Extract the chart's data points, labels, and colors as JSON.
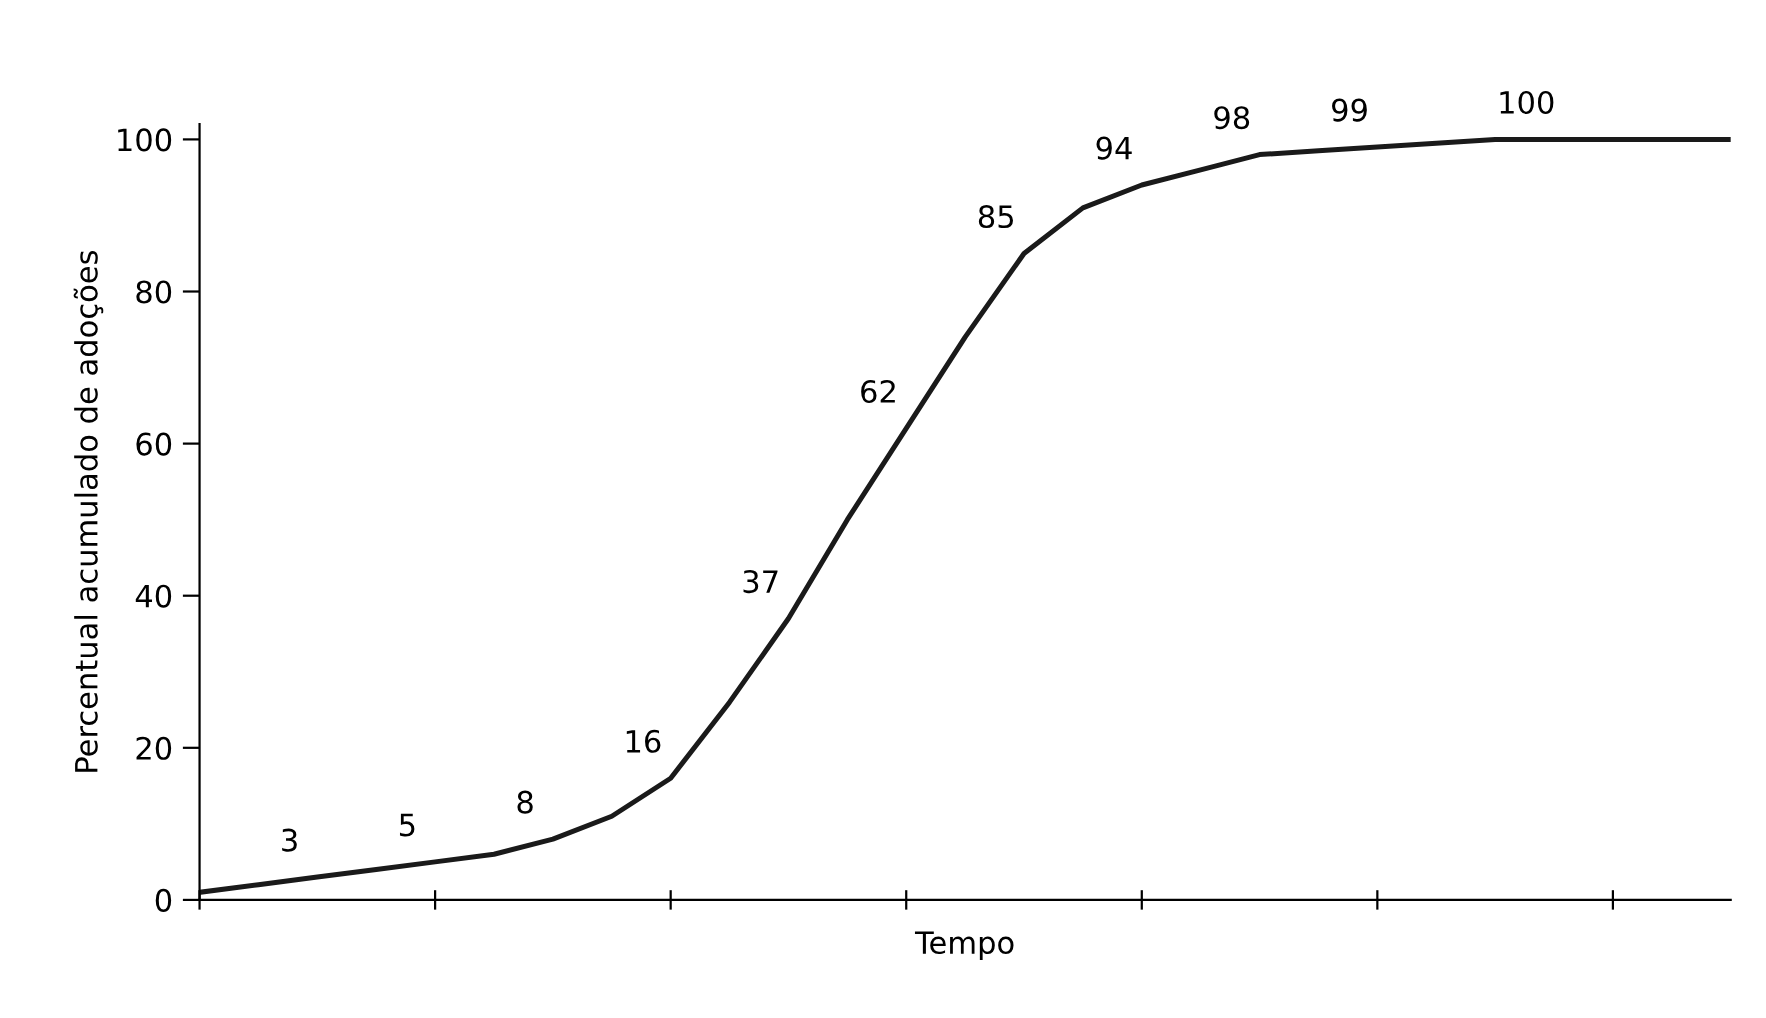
{
  "chart_data": {
    "type": "line",
    "xlabel": "Tempo",
    "ylabel": "Percentual acumulado de adoções",
    "categories": [
      null,
      null,
      null,
      null,
      null,
      null,
      null,
      null,
      null,
      null,
      null,
      null,
      null,
      null,
      null,
      null,
      null,
      null,
      null,
      null,
      null,
      null,
      null,
      null,
      null,
      null,
      null
    ],
    "values": [
      1,
      2,
      3,
      4,
      5,
      6,
      8,
      11,
      16,
      26,
      37,
      50,
      62,
      74,
      85,
      91,
      94,
      96,
      98,
      98.5,
      99,
      99.5,
      100,
      100,
      100,
      100,
      100
    ],
    "value_labels": [
      null,
      null,
      "3",
      null,
      "5",
      null,
      "8",
      null,
      "16",
      null,
      "37",
      null,
      "62",
      null,
      "85",
      null,
      "94",
      null,
      "98",
      null,
      "99",
      null,
      null,
      "100",
      null,
      null,
      null
    ],
    "color": "#1a1a1a",
    "ylim": [
      0,
      102
    ],
    "yticks": [
      0,
      20,
      40,
      60,
      80,
      100
    ],
    "grid": false,
    "legend": false,
    "marker": "none",
    "line_style": "solid"
  }
}
